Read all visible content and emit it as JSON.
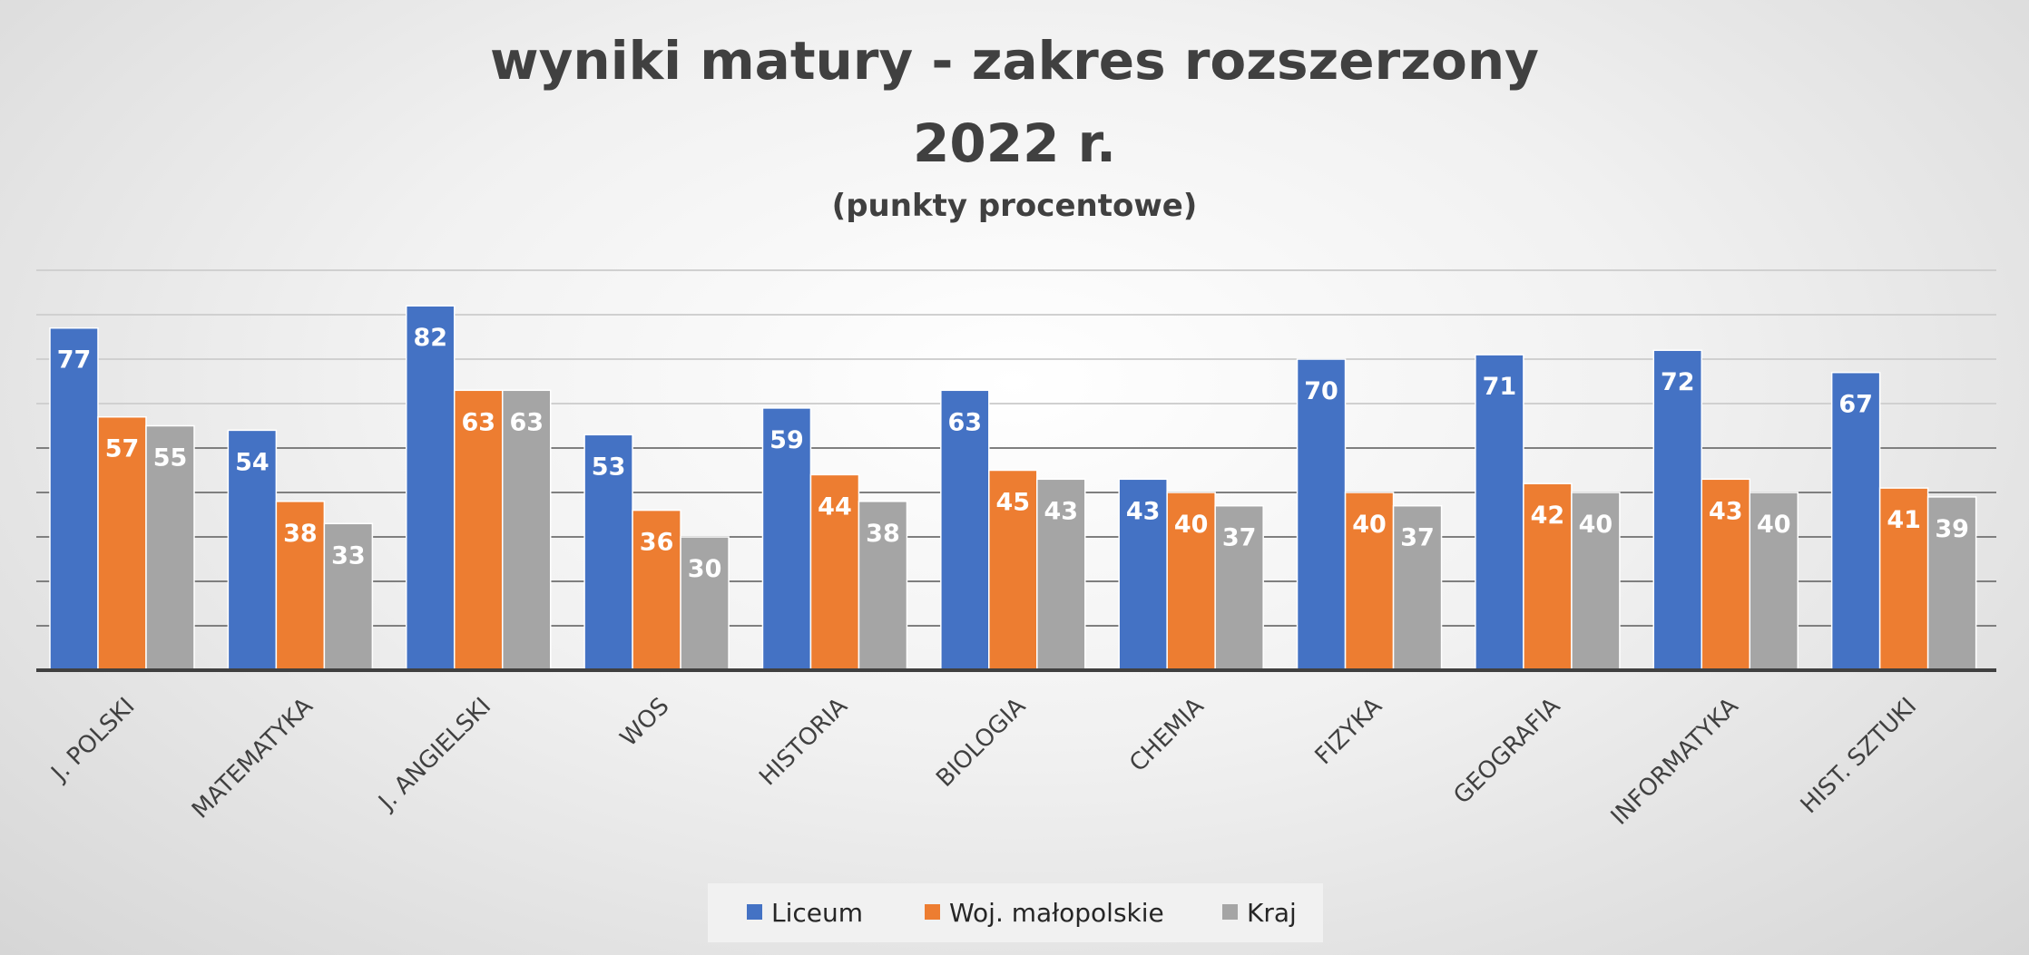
{
  "chart_data": {
    "type": "bar",
    "title": "wyniki matury - zakres rozszerzony",
    "title_line2": "2022 r.",
    "subtitle": "(punkty procentowe)",
    "categories": [
      "J. POLSKI",
      "MATEMATYKA",
      "J. ANGIELSKI",
      "WOS",
      "HISTORIA",
      "BIOLOGIA",
      "CHEMIA",
      "FIZYKA",
      "GEOGRAFIA",
      "INFORMATYKA",
      "HIST. SZTUKI"
    ],
    "series": [
      {
        "name": "Liceum",
        "color": "#4472C4",
        "values": [
          77,
          54,
          82,
          53,
          59,
          63,
          43,
          70,
          71,
          72,
          67
        ]
      },
      {
        "name": "Woj. małopolskie",
        "color": "#ED7D31",
        "values": [
          57,
          38,
          63,
          36,
          44,
          45,
          40,
          40,
          42,
          43,
          41
        ]
      },
      {
        "name": "Kraj",
        "color": "#A5A5A5",
        "values": [
          55,
          33,
          63,
          30,
          38,
          43,
          37,
          37,
          40,
          40,
          39
        ]
      }
    ],
    "ylim": [
      0,
      90
    ],
    "grid": true,
    "legend_position": "bottom"
  }
}
